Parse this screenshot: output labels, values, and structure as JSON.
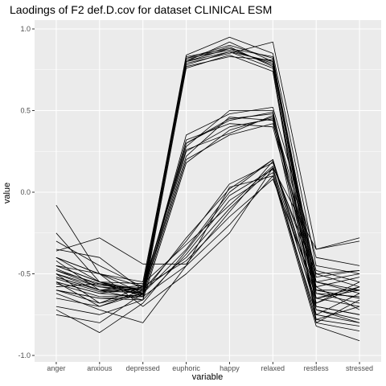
{
  "chart_data": {
    "type": "line",
    "title": "Laodings of F2 def.D.cov for dataset CLINICAL ESM",
    "xlabel": "variable",
    "ylabel": "value",
    "categories": [
      "anger",
      "anxious",
      "depressed",
      "euphoric",
      "happy",
      "relaxed",
      "restless",
      "stressed"
    ],
    "ylim": [
      -1.0,
      1.0
    ],
    "yticks": [
      -1.0,
      -0.5,
      0.0,
      0.5,
      1.0
    ],
    "ytick_labels": [
      "-1.0",
      "-0.5",
      "0.0",
      "0.5",
      "1.0"
    ],
    "grid": true,
    "legend": "none",
    "colors": {
      "panel": "#ebebeb",
      "grid": "#ffffff",
      "line": "#000000"
    },
    "series": [
      {
        "values": [
          -0.52,
          -0.6,
          -0.62,
          0.8,
          0.88,
          0.78,
          -0.6,
          -0.6
        ]
      },
      {
        "values": [
          -0.48,
          -0.58,
          -0.6,
          0.82,
          0.9,
          0.82,
          -0.55,
          -0.62
        ]
      },
      {
        "values": [
          -0.4,
          -0.55,
          -0.64,
          0.78,
          0.86,
          0.76,
          -0.7,
          -0.75
        ]
      },
      {
        "values": [
          -0.55,
          -0.62,
          -0.58,
          0.84,
          0.95,
          0.85,
          -0.45,
          -0.5
        ]
      },
      {
        "values": [
          -0.6,
          -0.65,
          -0.66,
          0.76,
          0.84,
          0.74,
          -0.78,
          -0.82
        ]
      },
      {
        "values": [
          -0.45,
          -0.5,
          -0.55,
          0.8,
          0.92,
          0.8,
          -0.65,
          -0.58
        ]
      },
      {
        "values": [
          -0.5,
          -0.68,
          -0.62,
          0.82,
          0.87,
          0.79,
          -0.52,
          -0.48
        ]
      },
      {
        "values": [
          -0.35,
          -0.4,
          -0.6,
          0.79,
          0.85,
          0.92,
          -0.35,
          -0.3
        ]
      },
      {
        "values": [
          -0.58,
          -0.56,
          -0.63,
          0.81,
          0.89,
          0.77,
          -0.8,
          -0.66
        ]
      },
      {
        "values": [
          -0.42,
          -0.6,
          -0.57,
          0.77,
          0.83,
          0.81,
          -0.58,
          -0.72
        ]
      },
      {
        "values": [
          -0.53,
          -0.61,
          -0.61,
          0.83,
          0.88,
          0.83,
          -0.62,
          -0.64
        ]
      },
      {
        "values": [
          -0.47,
          -0.57,
          -0.59,
          0.8,
          0.86,
          0.8,
          -0.68,
          -0.55
        ]
      },
      {
        "values": [
          -0.5,
          -0.58,
          -0.62,
          0.25,
          0.4,
          0.45,
          -0.55,
          -0.6
        ]
      },
      {
        "values": [
          -0.45,
          -0.55,
          -0.6,
          0.3,
          0.45,
          0.48,
          -0.6,
          -0.65
        ]
      },
      {
        "values": [
          -0.55,
          -0.62,
          -0.64,
          0.2,
          0.35,
          0.42,
          -0.5,
          -0.58
        ]
      },
      {
        "values": [
          -0.6,
          -0.68,
          -0.58,
          0.28,
          0.5,
          0.5,
          -0.72,
          -0.8
        ]
      },
      {
        "values": [
          -0.4,
          -0.5,
          -0.62,
          0.35,
          0.48,
          0.52,
          -0.4,
          -0.45
        ]
      },
      {
        "values": [
          -0.52,
          -0.6,
          -0.66,
          0.18,
          0.38,
          0.46,
          -0.65,
          -0.7
        ]
      },
      {
        "values": [
          -0.48,
          -0.56,
          -0.6,
          0.32,
          0.42,
          0.4,
          -0.58,
          -0.52
        ]
      },
      {
        "values": [
          -0.65,
          -0.7,
          -0.62,
          0.22,
          0.46,
          0.44,
          -0.75,
          -0.62
        ]
      },
      {
        "values": [
          -0.3,
          -0.45,
          -0.58,
          0.26,
          0.36,
          0.47,
          -0.48,
          -0.55
        ]
      },
      {
        "values": [
          -0.56,
          -0.64,
          -0.63,
          0.3,
          0.44,
          0.49,
          -0.62,
          -0.68
        ]
      },
      {
        "values": [
          -0.5,
          -0.6,
          -0.6,
          -0.4,
          -0.1,
          0.15,
          -0.7,
          -0.75
        ]
      },
      {
        "values": [
          -0.45,
          -0.55,
          -0.62,
          -0.35,
          0.0,
          0.2,
          -0.65,
          -0.6
        ]
      },
      {
        "values": [
          -0.6,
          -0.65,
          -0.64,
          -0.45,
          -0.2,
          0.1,
          -0.75,
          -0.8
        ]
      },
      {
        "values": [
          -0.55,
          -0.7,
          -0.6,
          -0.3,
          0.05,
          0.18,
          -0.55,
          -0.5
        ]
      },
      {
        "values": [
          -0.7,
          -0.75,
          -0.66,
          -0.38,
          -0.05,
          0.12,
          -0.8,
          -0.85
        ]
      },
      {
        "values": [
          -0.4,
          -0.5,
          -0.58,
          -0.42,
          -0.15,
          0.08,
          -0.6,
          -0.65
        ]
      },
      {
        "values": [
          -0.75,
          -0.8,
          -0.62,
          -0.28,
          0.02,
          0.2,
          -0.68,
          -0.58
        ]
      },
      {
        "values": [
          -0.08,
          -0.5,
          -0.7,
          -0.5,
          -0.25,
          0.15,
          -0.35,
          -0.28
        ]
      },
      {
        "values": [
          -0.25,
          -0.55,
          -0.56,
          -0.32,
          -0.08,
          0.16,
          -0.5,
          -0.48
        ]
      },
      {
        "values": [
          -0.62,
          -0.72,
          -0.8,
          -0.45,
          0.03,
          0.1,
          -0.82,
          -0.91
        ]
      },
      {
        "values": [
          -0.36,
          -0.28,
          -0.44,
          -0.44,
          -0.12,
          0.19,
          -0.72,
          -0.78
        ]
      },
      {
        "values": [
          -0.72,
          -0.86,
          -0.68,
          -0.36,
          -0.02,
          0.14,
          -0.78,
          -0.7
        ]
      }
    ]
  }
}
